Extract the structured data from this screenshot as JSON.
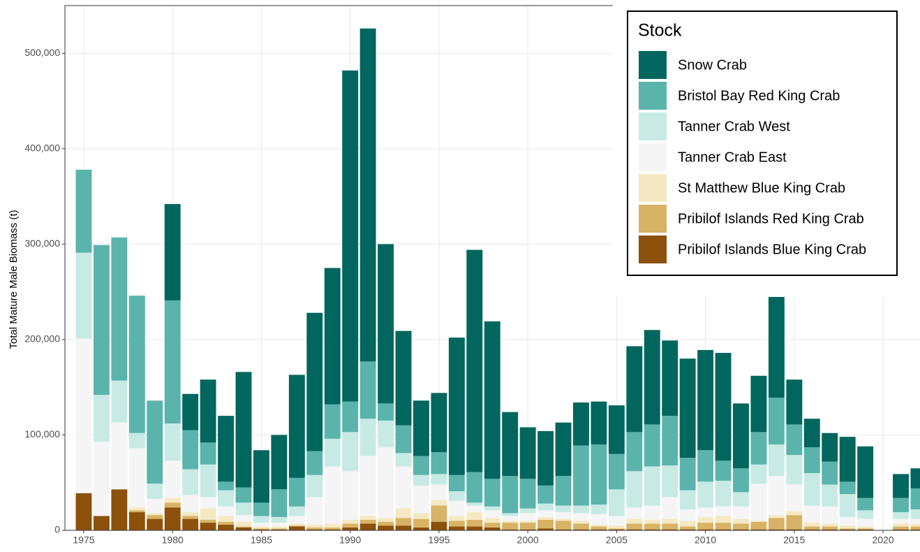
{
  "chart_data": {
    "type": "stacked_bar",
    "y_label": "Total Mature Male Biomass (t)",
    "legend_title": "Stock",
    "legend_position": "top-right",
    "grid": true,
    "x": [
      1975,
      1976,
      1977,
      1978,
      1979,
      1980,
      1981,
      1982,
      1983,
      1984,
      1985,
      1986,
      1987,
      1988,
      1989,
      1990,
      1991,
      1992,
      1993,
      1994,
      1995,
      1996,
      1997,
      1998,
      1999,
      2000,
      2001,
      2002,
      2003,
      2004,
      2005,
      2006,
      2007,
      2008,
      2009,
      2010,
      2011,
      2012,
      2013,
      2014,
      2015,
      2016,
      2017,
      2018,
      2019,
      2020,
      2021,
      2022
    ],
    "xlim": [
      1973.94,
      2022.08
    ],
    "xticks": [
      1975,
      1980,
      1985,
      1990,
      1995,
      2000,
      2005,
      2010,
      2015,
      2020
    ],
    "ylim": [
      0,
      550000
    ],
    "yticks": [
      0,
      {
        "value": 100000,
        "label": "100,000"
      },
      {
        "value": 200000,
        "label": "200,000"
      },
      {
        "value": 300000,
        "label": "300,000"
      },
      {
        "value": 400000,
        "label": "400,000"
      },
      {
        "value": 500000,
        "label": "500,000"
      }
    ],
    "series": [
      {
        "name": "Pribilof Islands Blue King Crab",
        "color": "#8c510a",
        "values": [
          39000,
          15000,
          43000,
          19000,
          12000,
          24000,
          12000,
          8000,
          6000,
          3000,
          1000,
          1000,
          4000,
          1000,
          1000,
          3000,
          7000,
          5000,
          5000,
          3000,
          9000,
          4000,
          4000,
          3000,
          1000,
          1000,
          2000,
          1000,
          1000,
          1000,
          1000,
          1000,
          1000,
          1000,
          1000,
          1000,
          1000,
          1000,
          1000,
          1000,
          1000,
          1000,
          1000,
          1000,
          1000,
          null,
          1000,
          1000
        ]
      },
      {
        "name": "Pribilof Islands Red King Crab",
        "color": "#d8b365",
        "values": [
          0,
          0,
          0,
          2000,
          4000,
          5000,
          3000,
          3000,
          3000,
          1000,
          1000,
          1000,
          1000,
          2000,
          2000,
          4000,
          4000,
          4000,
          8000,
          9000,
          17000,
          6000,
          7000,
          5000,
          7000,
          7000,
          9000,
          9000,
          6000,
          3000,
          1000,
          6000,
          6000,
          6000,
          3000,
          7000,
          7000,
          6000,
          8000,
          12000,
          15000,
          3000,
          3000,
          1000,
          1000,
          null,
          3000,
          3000
        ]
      },
      {
        "name": "St Matthew Blue King Crab",
        "color": "#f6e8c3",
        "values": [
          0,
          0,
          0,
          3000,
          2000,
          5000,
          4000,
          12000,
          6000,
          5000,
          2000,
          2000,
          2000,
          3000,
          4000,
          4000,
          4000,
          4000,
          10000,
          6000,
          6000,
          5000,
          8000,
          5000,
          2000,
          2000,
          3000,
          2000,
          3000,
          2000,
          3000,
          5000,
          4000,
          5000,
          6000,
          6000,
          7000,
          5000,
          1000,
          3000,
          4000,
          4000,
          3000,
          3000,
          2000,
          null,
          3000,
          3000
        ]
      },
      {
        "name": "Tanner Crab East",
        "color": "#f5f5f5",
        "values": [
          162000,
          78000,
          70000,
          62000,
          15000,
          39000,
          18000,
          12000,
          10000,
          7000,
          4000,
          4000,
          8000,
          29000,
          60000,
          51000,
          63000,
          74000,
          44000,
          29000,
          16000,
          16000,
          7000,
          8000,
          5000,
          8000,
          7000,
          7000,
          8000,
          11000,
          10000,
          12000,
          15000,
          23000,
          12000,
          10000,
          10000,
          13000,
          39000,
          41000,
          28000,
          18000,
          18000,
          9000,
          8000,
          null,
          5000,
          5000
        ]
      },
      {
        "name": "Tanner Crab West",
        "color": "#c7eae5",
        "values": [
          90000,
          49000,
          44000,
          16000,
          16000,
          39000,
          27000,
          34000,
          17000,
          13000,
          7000,
          6000,
          10000,
          23000,
          29000,
          41000,
          39000,
          28000,
          14000,
          11000,
          11000,
          10000,
          3000,
          4000,
          3000,
          5000,
          7000,
          7000,
          8000,
          10000,
          28000,
          38000,
          41000,
          33000,
          20000,
          27000,
          27000,
          15000,
          20000,
          33000,
          31000,
          34000,
          23000,
          24000,
          9000,
          null,
          7000,
          10000
        ]
      },
      {
        "name": "Bristol Bay Red King Crab",
        "color": "#5ab4ac",
        "values": [
          87000,
          157000,
          150000,
          144000,
          87000,
          129000,
          41000,
          23000,
          9000,
          16000,
          14000,
          29000,
          30000,
          25000,
          36000,
          32000,
          60000,
          18000,
          29000,
          20000,
          23000,
          17000,
          32000,
          29000,
          39000,
          31000,
          19000,
          31000,
          63000,
          63000,
          37000,
          41000,
          44000,
          52000,
          34000,
          33000,
          21000,
          25000,
          34000,
          49000,
          32000,
          27000,
          24000,
          13000,
          13000,
          null,
          15000,
          22000
        ]
      },
      {
        "name": "Snow Crab",
        "color": "#01665e",
        "values": [
          0,
          0,
          0,
          0,
          0,
          101000,
          38000,
          66000,
          69000,
          121000,
          55000,
          57000,
          108000,
          145000,
          143000,
          347000,
          349000,
          167000,
          99000,
          58000,
          62000,
          144000,
          233000,
          165000,
          67000,
          54000,
          57000,
          56000,
          45000,
          45000,
          51000,
          90000,
          99000,
          79000,
          104000,
          105000,
          113000,
          68000,
          59000,
          121000,
          47000,
          30000,
          30000,
          47000,
          54000,
          null,
          25000,
          21000
        ]
      }
    ]
  }
}
